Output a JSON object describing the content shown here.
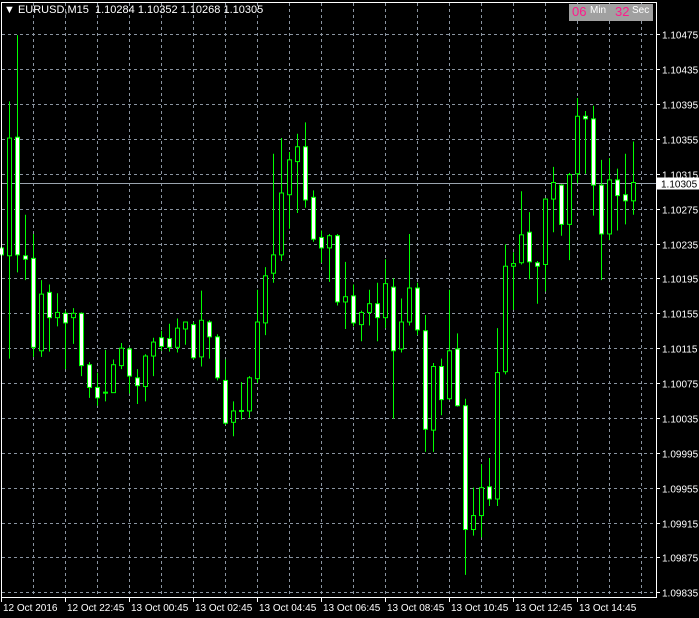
{
  "header": {
    "symbol_tf": "EURUSD,M15",
    "open": "1.10284",
    "high": "1.10352",
    "low": "1.10268",
    "close": "1.10305"
  },
  "timer": {
    "minutes": "06",
    "min_label": "Min",
    "seconds": "32",
    "sec_label": "Sec"
  },
  "colors": {
    "background": "#000000",
    "candle_outline": "#00ff00",
    "bear_body": "#ffffff",
    "bull_body": "#000000",
    "grid": "#8a94a0",
    "bid_line": "#9aa4ae"
  },
  "chart_data": {
    "type": "candlestick",
    "title": "EURUSD,M15",
    "ylim": [
      1.09835,
      1.10475
    ],
    "grid": true,
    "bid_price": "1.10305",
    "y_ticks": [
      "1.10475",
      "1.10435",
      "1.10395",
      "1.10355",
      "1.10315",
      "1.10275",
      "1.10235",
      "1.10195",
      "1.10155",
      "1.10115",
      "1.10075",
      "1.10035",
      "1.09995",
      "1.09955",
      "1.09915",
      "1.09875",
      "1.09835"
    ],
    "x_ticks": [
      "12 Oct 2016",
      "12 Oct 22:45",
      "13 Oct 00:45",
      "13 Oct 02:45",
      "13 Oct 04:45",
      "13 Oct 06:45",
      "13 Oct 08:45",
      "13 Oct 10:45",
      "13 Oct 12:45",
      "13 Oct 14:45"
    ],
    "ohlc": [
      [
        1.1023,
        1.10309,
        1.10179,
        1.10222
      ],
      [
        1.10221,
        1.10398,
        1.10103,
        1.10356
      ],
      [
        1.10357,
        1.10474,
        1.10202,
        1.10222
      ],
      [
        1.10221,
        1.10268,
        1.10193,
        1.10217
      ],
      [
        1.10218,
        1.10246,
        1.10105,
        1.10116
      ],
      [
        1.10112,
        1.10193,
        1.10105,
        1.10177
      ],
      [
        1.10179,
        1.10188,
        1.10111,
        1.1015
      ],
      [
        1.1015,
        1.10178,
        1.1014,
        1.10156
      ],
      [
        1.10155,
        1.10158,
        1.10091,
        1.10144
      ],
      [
        1.1015,
        1.10161,
        1.1012,
        1.10155
      ],
      [
        1.10155,
        1.10156,
        1.10083,
        1.10095
      ],
      [
        1.10096,
        1.10099,
        1.10058,
        1.1007
      ],
      [
        1.1007,
        1.10087,
        1.10049,
        1.10058
      ],
      [
        1.10064,
        1.10113,
        1.10054,
        1.10064
      ],
      [
        1.10064,
        1.10102,
        1.10064,
        1.10096
      ],
      [
        1.10095,
        1.10121,
        1.10091,
        1.10115
      ],
      [
        1.10114,
        1.10116,
        1.10063,
        1.10083
      ],
      [
        1.10081,
        1.10091,
        1.10051,
        1.10072
      ],
      [
        1.10071,
        1.10108,
        1.10054,
        1.10106
      ],
      [
        1.10106,
        1.10127,
        1.10083,
        1.10122
      ],
      [
        1.10127,
        1.10135,
        1.10112,
        1.10117
      ],
      [
        1.10126,
        1.10143,
        1.10111,
        1.10116
      ],
      [
        1.10116,
        1.10149,
        1.1011,
        1.10138
      ],
      [
        1.10137,
        1.10145,
        1.10119,
        1.10145
      ],
      [
        1.10142,
        1.10145,
        1.10102,
        1.10104
      ],
      [
        1.10105,
        1.10181,
        1.10094,
        1.10147
      ],
      [
        1.10145,
        1.10147,
        1.10103,
        1.10128
      ],
      [
        1.10128,
        1.10131,
        1.10078,
        1.10081
      ],
      [
        1.10078,
        1.10102,
        1.10027,
        1.10029
      ],
      [
        1.1003,
        1.10054,
        1.10014,
        1.10043
      ],
      [
        1.10043,
        1.10076,
        1.10033,
        1.10043
      ],
      [
        1.10043,
        1.10083,
        1.10035,
        1.10081
      ],
      [
        1.1008,
        1.10182,
        1.10075,
        1.10145
      ],
      [
        1.10144,
        1.10208,
        1.1013,
        1.10198
      ],
      [
        1.10201,
        1.10338,
        1.1019,
        1.10222
      ],
      [
        1.10222,
        1.10356,
        1.10215,
        1.10293
      ],
      [
        1.10291,
        1.1034,
        1.10252,
        1.10331
      ],
      [
        1.10329,
        1.10361,
        1.1027,
        1.10346
      ],
      [
        1.10346,
        1.10374,
        1.10276,
        1.10285
      ],
      [
        1.10288,
        1.10296,
        1.10237,
        1.1024
      ],
      [
        1.10242,
        1.1025,
        1.10213,
        1.1023
      ],
      [
        1.1023,
        1.10246,
        1.10191,
        1.10244
      ],
      [
        1.10244,
        1.10246,
        1.10164,
        1.10168
      ],
      [
        1.10168,
        1.10214,
        1.10137,
        1.10174
      ],
      [
        1.10175,
        1.10188,
        1.1014,
        1.10144
      ],
      [
        1.10142,
        1.10158,
        1.10123,
        1.10156
      ],
      [
        1.10156,
        1.10182,
        1.10141,
        1.10166
      ],
      [
        1.10166,
        1.1019,
        1.10123,
        1.1015
      ],
      [
        1.1015,
        1.10217,
        1.10138,
        1.10189
      ],
      [
        1.10185,
        1.10195,
        1.10034,
        1.10112
      ],
      [
        1.10114,
        1.10172,
        1.1011,
        1.10145
      ],
      [
        1.10145,
        1.10246,
        1.10141,
        1.10184
      ],
      [
        1.10184,
        1.1019,
        1.1013,
        1.10136
      ],
      [
        1.10135,
        1.10153,
        1.09996,
        1.10022
      ],
      [
        1.10021,
        1.10098,
        1.09996,
        1.10094
      ],
      [
        1.10094,
        1.10103,
        1.10038,
        1.10056
      ],
      [
        1.10057,
        1.10182,
        1.10056,
        1.10112
      ],
      [
        1.10114,
        1.10132,
        1.10048,
        1.10049
      ],
      [
        1.10049,
        1.10057,
        1.09855,
        1.09907
      ],
      [
        1.09907,
        1.09955,
        1.099,
        1.09923
      ],
      [
        1.09923,
        1.09982,
        1.09898,
        1.09955
      ],
      [
        1.09956,
        1.09989,
        1.09934,
        1.09942
      ],
      [
        1.09942,
        1.10138,
        1.09934,
        1.10087
      ],
      [
        1.10088,
        1.10234,
        1.10085,
        1.10209
      ],
      [
        1.10209,
        1.10225,
        1.10159,
        1.10212
      ],
      [
        1.10213,
        1.10295,
        1.10211,
        1.10245
      ],
      [
        1.10248,
        1.10271,
        1.10194,
        1.10214
      ],
      [
        1.10213,
        1.10215,
        1.10166,
        1.10209
      ],
      [
        1.10211,
        1.10287,
        1.1018,
        1.10286
      ],
      [
        1.10286,
        1.10323,
        1.10248,
        1.10305
      ],
      [
        1.10302,
        1.10303,
        1.10244,
        1.10257
      ],
      [
        1.10257,
        1.10316,
        1.10216,
        1.10314
      ],
      [
        1.10315,
        1.10402,
        1.10304,
        1.10381
      ],
      [
        1.10381,
        1.10387,
        1.10315,
        1.10378
      ],
      [
        1.10378,
        1.10393,
        1.10267,
        1.10302
      ],
      [
        1.10302,
        1.10331,
        1.10193,
        1.10246
      ],
      [
        1.10246,
        1.10333,
        1.10239,
        1.10308
      ],
      [
        1.10308,
        1.10321,
        1.1025,
        1.1029
      ],
      [
        1.10291,
        1.10338,
        1.10257,
        1.10284
      ],
      [
        1.10284,
        1.10352,
        1.10268,
        1.10305
      ]
    ]
  }
}
